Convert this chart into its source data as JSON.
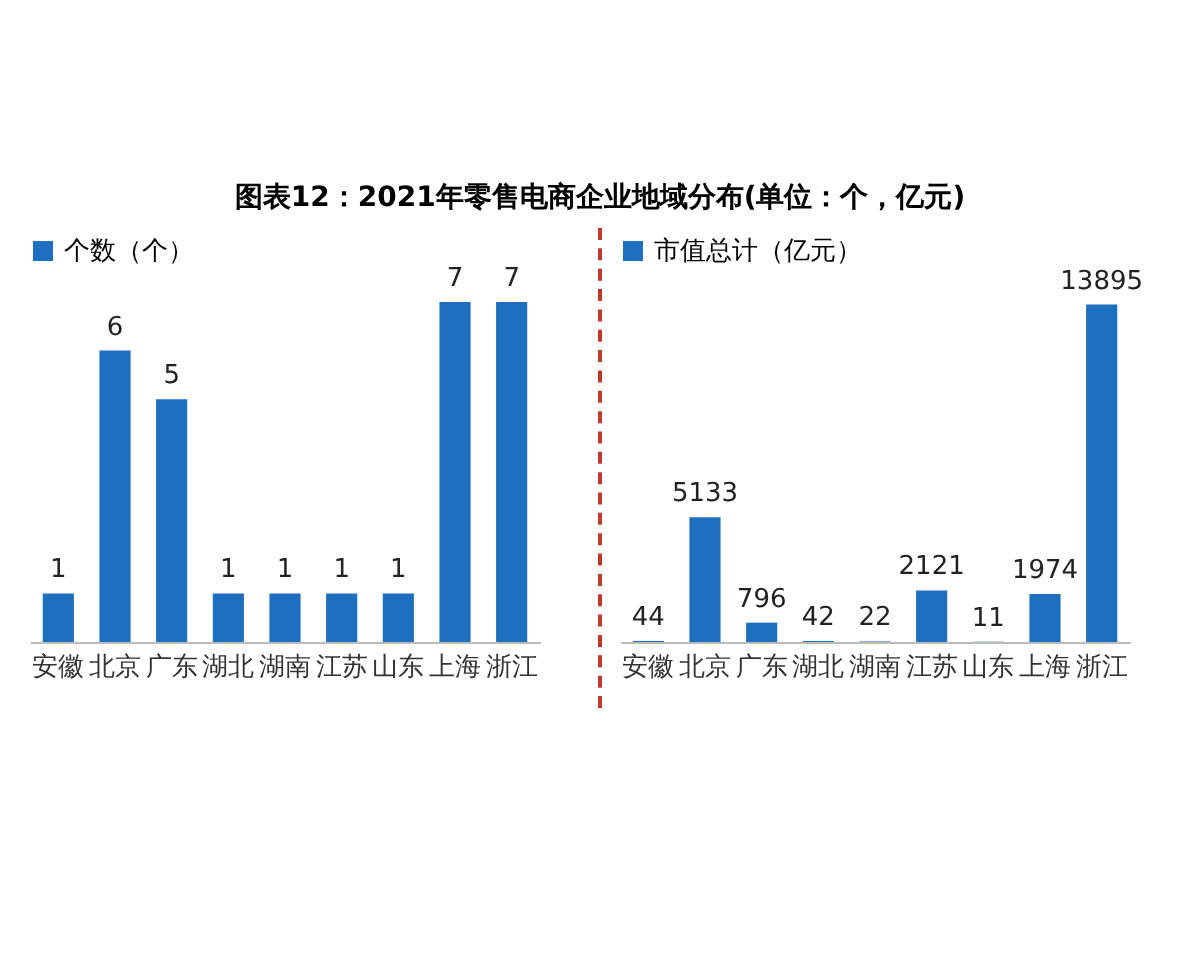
{
  "chart_data": [
    {
      "type": "bar",
      "title": "图表12：2021年零售电商企业地域分布(单位：个，亿元)",
      "categories": [
        "安徽",
        "北京",
        "广东",
        "湖北",
        "湖南",
        "江苏",
        "山东",
        "上海",
        "浙江"
      ],
      "series": [
        {
          "name": "个数（个）",
          "color": "#1f6fbf",
          "values": [
            1,
            6,
            5,
            1,
            1,
            1,
            1,
            7,
            7
          ]
        }
      ],
      "data_labels": true,
      "legend": "top"
    },
    {
      "type": "bar",
      "categories": [
        "安徽",
        "北京",
        "广东",
        "湖北",
        "湖南",
        "江苏",
        "山东",
        "上海",
        "浙江"
      ],
      "series": [
        {
          "name": "市值总计（亿元）",
          "color": "#1f6fbf",
          "values": [
            44,
            5133,
            796,
            42,
            22,
            2121,
            11,
            1974,
            13895
          ]
        }
      ],
      "data_labels": true,
      "legend": "top"
    }
  ]
}
